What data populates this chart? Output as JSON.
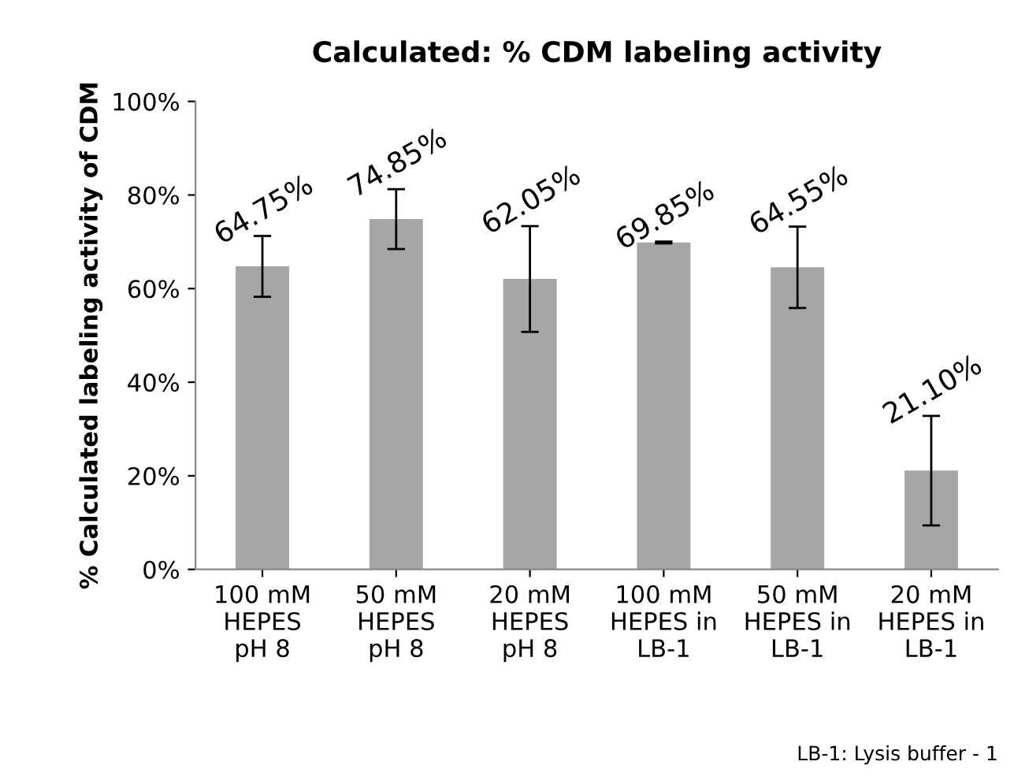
{
  "chart_data": {
    "type": "bar",
    "title": "Calculated: % CDM labeling activity",
    "ylabel": "% Calculated labeling activity of CDM",
    "categories": [
      "100 mM\nHEPES\npH 8",
      "50 mM\nHEPES\npH 8",
      "20 mM\nHEPES\npH 8",
      "100 mM\nHEPES in\nLB-1",
      "50 mM\nHEPES in\nLB-1",
      "20 mM\nHEPES in\nLB-1"
    ],
    "values": [
      64.75,
      74.85,
      62.05,
      69.85,
      64.55,
      21.1
    ],
    "errors": [
      6.5,
      6.4,
      11.3,
      0.2,
      8.7,
      11.7
    ],
    "value_labels": [
      "64.75%",
      "74.85%",
      "62.05%",
      "69.85%",
      "64.55%",
      "21.10%"
    ],
    "color": "#a6a6a6",
    "ylim": [
      0,
      100
    ],
    "yticks": [
      {
        "value": 0,
        "label": "0%"
      },
      {
        "value": 20,
        "label": "20%"
      },
      {
        "value": 40,
        "label": "40%"
      },
      {
        "value": 60,
        "label": "60%"
      },
      {
        "value": 80,
        "label": "80%"
      },
      {
        "value": 100,
        "label": "100%"
      }
    ],
    "grid": false,
    "annotations": [
      "LB-1: Lysis buffer - 1"
    ]
  }
}
